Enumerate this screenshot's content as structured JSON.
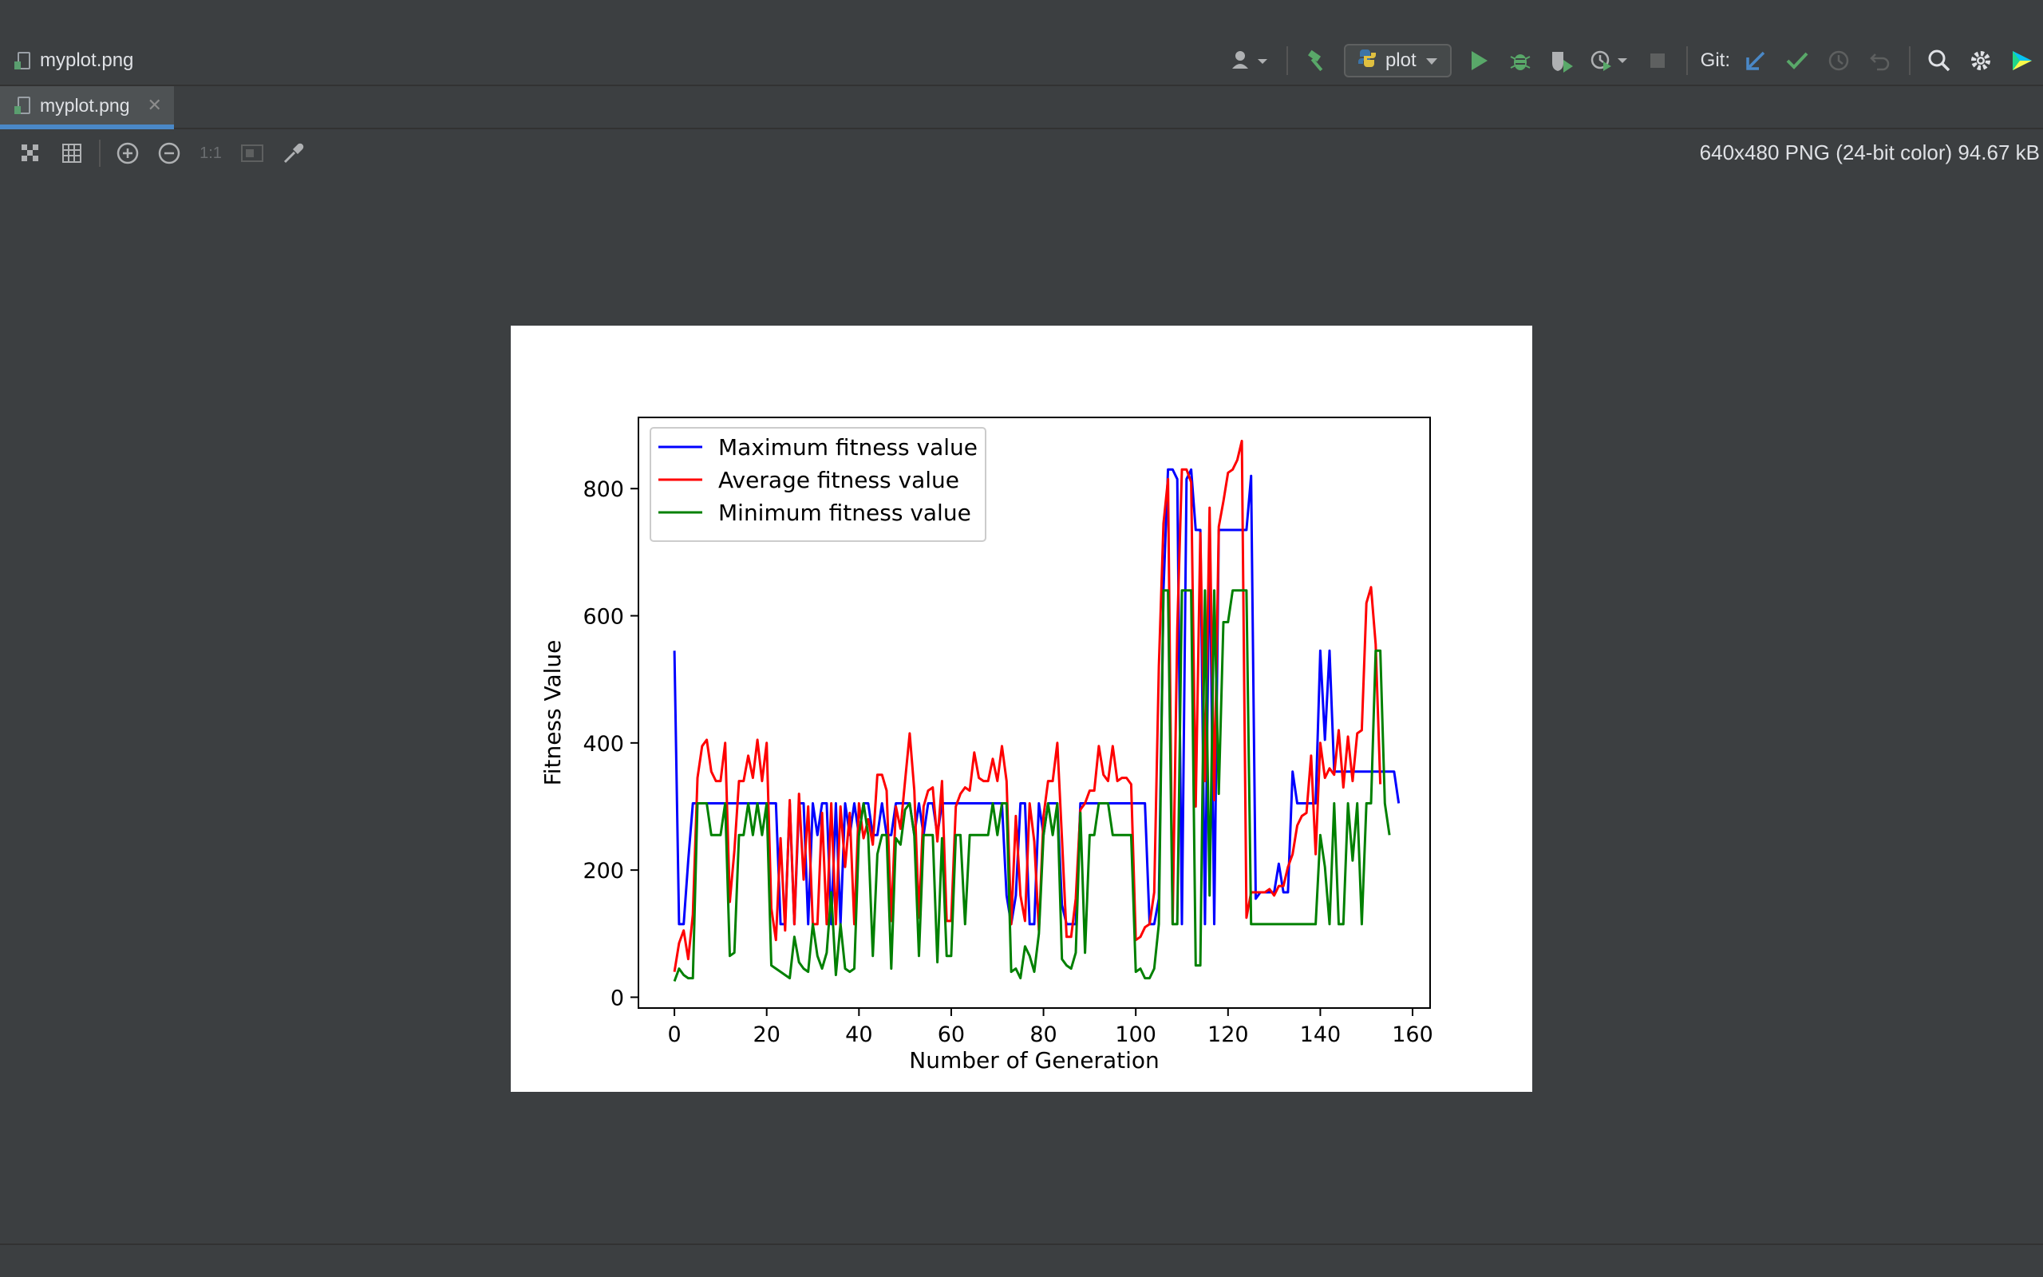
{
  "titlebar": {
    "file_name": "myplot.png",
    "run_config_label": "plot",
    "git_label": "Git:"
  },
  "tabs": [
    {
      "label": "myplot.png",
      "active": true
    }
  ],
  "editor_toolbar": {
    "zoom_actual_label": "1:1",
    "image_info": "640x480 PNG (24-bit color) 94.67 kB"
  },
  "icons": {
    "user": "user-icon",
    "build": "hammer-icon",
    "python": "python-icon",
    "run": "play-icon",
    "debug": "bug-icon",
    "coverage": "coverage-icon",
    "profile": "profile-icon",
    "stop": "stop-icon",
    "git_update": "arrow-down-left-icon",
    "git_commit": "checkmark-icon",
    "git_history": "clock-icon",
    "git_rollback": "undo-icon",
    "search": "search-icon",
    "settings": "gear-icon",
    "plugin": "jetbrains-toolbox-icon"
  },
  "colors": {
    "accent": "#4a88c7",
    "run_green": "#59a869",
    "series_max": "#0000ff",
    "series_avg": "#ff0000",
    "series_min": "#008000"
  },
  "chart_data": {
    "type": "line",
    "title": "",
    "xlabel": "Number of Generation",
    "ylabel": "Fitness Value",
    "xlim": [
      -7.8,
      163.8
    ],
    "ylim": [
      -17,
      912
    ],
    "xticks": [
      0,
      20,
      40,
      60,
      80,
      100,
      120,
      140,
      160
    ],
    "yticks": [
      0,
      200,
      400,
      600,
      800
    ],
    "legend_position": "upper-left",
    "grid": false,
    "series": [
      {
        "name": "Maximum fitness value",
        "color": "#0000ff",
        "values": [
          545,
          115,
          115,
          215,
          305,
          305,
          305,
          305,
          305,
          305,
          305,
          305,
          305,
          305,
          305,
          305,
          305,
          305,
          305,
          305,
          305,
          305,
          305,
          115,
          115,
          305,
          115,
          305,
          305,
          115,
          305,
          255,
          305,
          305,
          115,
          305,
          115,
          305,
          255,
          305,
          255,
          305,
          305,
          255,
          255,
          305,
          255,
          255,
          305,
          305,
          305,
          305,
          255,
          305,
          255,
          305,
          305,
          255,
          305,
          305,
          305,
          305,
          305,
          305,
          305,
          305,
          305,
          305,
          305,
          305,
          305,
          305,
          160,
          115,
          160,
          305,
          305,
          115,
          115,
          305,
          255,
          305,
          305,
          305,
          145,
          115,
          115,
          115,
          305,
          305,
          305,
          305,
          305,
          305,
          305,
          305,
          305,
          305,
          305,
          305,
          305,
          305,
          305,
          115,
          115,
          155,
          640,
          830,
          830,
          815,
          115,
          815,
          830,
          735,
          735,
          115,
          735,
          115,
          735,
          735,
          735,
          735,
          735,
          735,
          735,
          820,
          155,
          165,
          165,
          165,
          165,
          210,
          165,
          165,
          355,
          305,
          305,
          305,
          305,
          305,
          545,
          405,
          545,
          355,
          355,
          355,
          355,
          355,
          355,
          355,
          355,
          355,
          355,
          355,
          355,
          355,
          355,
          305
        ]
      },
      {
        "name": "Average fitness value",
        "color": "#ff0000",
        "values": [
          40,
          85,
          105,
          60,
          130,
          345,
          395,
          405,
          355,
          340,
          340,
          400,
          150,
          230,
          340,
          340,
          380,
          345,
          405,
          340,
          400,
          140,
          90,
          250,
          105,
          310,
          115,
          320,
          185,
          300,
          115,
          115,
          290,
          115,
          305,
          115,
          300,
          205,
          290,
          115,
          305,
          250,
          280,
          240,
          350,
          350,
          325,
          120,
          300,
          265,
          340,
          415,
          325,
          125,
          300,
          325,
          330,
          245,
          340,
          120,
          120,
          300,
          320,
          330,
          325,
          385,
          345,
          340,
          340,
          375,
          340,
          395,
          340,
          115,
          285,
          160,
          120,
          305,
          245,
          105,
          285,
          340,
          340,
          400,
          250,
          95,
          95,
          155,
          295,
          305,
          325,
          325,
          395,
          350,
          340,
          395,
          340,
          345,
          345,
          335,
          90,
          95,
          110,
          115,
          165,
          520,
          745,
          815,
          115,
          580,
          830,
          830,
          810,
          300,
          730,
          340,
          770,
          310,
          740,
          780,
          825,
          830,
          845,
          875,
          125,
          165,
          165,
          165,
          165,
          170,
          160,
          175,
          175,
          205,
          225,
          270,
          285,
          290,
          380,
          225,
          400,
          345,
          360,
          350,
          420,
          330,
          410,
          340,
          415,
          420,
          620,
          645,
          555,
          335
        ]
      },
      {
        "name": "Minimum fitness value",
        "color": "#008000",
        "values": [
          25,
          45,
          35,
          30,
          30,
          305,
          305,
          305,
          255,
          255,
          255,
          305,
          65,
          70,
          255,
          255,
          305,
          255,
          305,
          255,
          305,
          50,
          45,
          40,
          35,
          30,
          95,
          55,
          45,
          40,
          115,
          65,
          45,
          70,
          165,
          35,
          115,
          45,
          40,
          45,
          255,
          305,
          255,
          65,
          225,
          255,
          255,
          45,
          250,
          240,
          295,
          305,
          255,
          65,
          255,
          255,
          255,
          55,
          250,
          65,
          65,
          255,
          255,
          115,
          255,
          255,
          255,
          255,
          255,
          305,
          255,
          305,
          305,
          40,
          45,
          30,
          80,
          65,
          40,
          100,
          255,
          305,
          255,
          305,
          60,
          50,
          45,
          70,
          290,
          70,
          255,
          255,
          305,
          305,
          305,
          255,
          255,
          255,
          255,
          255,
          40,
          45,
          30,
          30,
          45,
          115,
          640,
          640,
          115,
          115,
          640,
          640,
          640,
          50,
          50,
          640,
          160,
          640,
          320,
          590,
          590,
          640,
          640,
          640,
          640,
          115,
          115,
          115,
          115,
          115,
          115,
          115,
          115,
          115,
          115,
          115,
          115,
          115,
          115,
          115,
          255,
          205,
          115,
          305,
          115,
          115,
          305,
          215,
          305,
          115,
          305,
          305,
          545,
          545,
          305,
          255
        ]
      }
    ]
  }
}
